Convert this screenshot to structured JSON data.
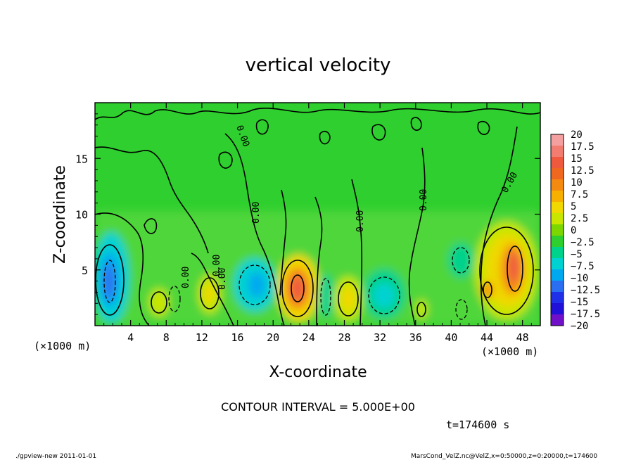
{
  "chart_data": {
    "type": "heatmap",
    "title": "vertical velocity",
    "xlabel": "X-coordinate",
    "ylabel": "Z-coordinate",
    "x_unit_left": "(×1000 m)",
    "x_unit_right": "(×1000 m)",
    "xlim": [
      0,
      50
    ],
    "ylim": [
      0,
      20
    ],
    "x_ticks": [
      4,
      8,
      12,
      16,
      20,
      24,
      28,
      32,
      36,
      40,
      44,
      48
    ],
    "y_ticks": [
      5,
      10,
      15
    ],
    "contour_interval_text": "CONTOUR INTERVAL = 5.000E+00",
    "time_text": "t=174600 s",
    "contour_labels": [
      "0.00",
      "0.00",
      "0.00",
      "0.00",
      "0.00",
      "0.00",
      "0.00",
      "0.00"
    ],
    "colorbar": {
      "levels": [
        "20",
        "17.5",
        "15",
        "12.5",
        "10",
        "7.5",
        "5",
        "2.5",
        "0",
        "−2.5",
        "−5",
        "−7.5",
        "−10",
        "−12.5",
        "−15",
        "−17.5",
        "−20"
      ],
      "colors": [
        "#f5a0a0",
        "#f27c70",
        "#ef5a3f",
        "#f06820",
        "#f58a10",
        "#f8b000",
        "#f0d800",
        "#c8e600",
        "#7cd600",
        "#2ecf2e",
        "#00d28c",
        "#00d2d2",
        "#00a8f0",
        "#2a6ef2",
        "#2030e8",
        "#2010d8",
        "#7010c8"
      ]
    },
    "cells": [
      {
        "x": 1.5,
        "z": 4.5,
        "w": -13
      },
      {
        "x": 2,
        "z": 6,
        "w": -6
      },
      {
        "x": 7.5,
        "z": 2.2,
        "w": 3
      },
      {
        "x": 9,
        "z": 3.5,
        "w": -2
      },
      {
        "x": 12.5,
        "z": 3.2,
        "w": 4
      },
      {
        "x": 18,
        "z": 3.5,
        "w": -7
      },
      {
        "x": 22.8,
        "z": 3.2,
        "w": 12
      },
      {
        "x": 26,
        "z": 3,
        "w": -3
      },
      {
        "x": 29,
        "z": 2.5,
        "w": 6
      },
      {
        "x": 32,
        "z": 2.5,
        "w": -7
      },
      {
        "x": 36,
        "z": 1.8,
        "w": 4
      },
      {
        "x": 39.5,
        "z": 4.5,
        "w": -4
      },
      {
        "x": 46.5,
        "z": 4.5,
        "w": 11
      },
      {
        "x": 43.5,
        "z": 3.5,
        "w": 10
      }
    ]
  },
  "footer": {
    "left": "./gpview-new   2011-01-01",
    "right": "MarsCond_VelZ.nc@VelZ,x=0:50000,z=0:20000,t=174600"
  }
}
